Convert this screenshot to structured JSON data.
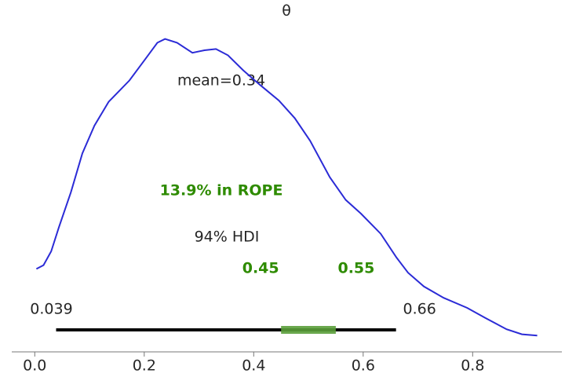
{
  "chart_data": {
    "type": "density",
    "title": "θ",
    "x": [
      0.003,
      0.016,
      0.03,
      0.044,
      0.066,
      0.087,
      0.109,
      0.135,
      0.173,
      0.202,
      0.224,
      0.238,
      0.26,
      0.288,
      0.31,
      0.331,
      0.353,
      0.381,
      0.41,
      0.446,
      0.475,
      0.503,
      0.539,
      0.568,
      0.596,
      0.632,
      0.661,
      0.682,
      0.711,
      0.747,
      0.79,
      0.823,
      0.862,
      0.89,
      0.918
    ],
    "values": [
      0.61,
      0.64,
      0.75,
      0.94,
      1.22,
      1.53,
      1.75,
      1.94,
      2.11,
      2.28,
      2.41,
      2.44,
      2.41,
      2.33,
      2.35,
      2.36,
      2.31,
      2.19,
      2.08,
      1.95,
      1.81,
      1.63,
      1.34,
      1.16,
      1.05,
      0.89,
      0.7,
      0.58,
      0.47,
      0.38,
      0.3,
      0.22,
      0.13,
      0.09,
      0.08
    ],
    "color": "#2b2bd6",
    "mean_label": "mean=0.34",
    "rope_label": "13.9% in ROPE",
    "rope": [
      0.45,
      0.55
    ],
    "rope_color": "#5a9e3a",
    "hdi_label": "94% HDI",
    "hdi": [
      0.039,
      0.66
    ],
    "xlim": [
      -0.042,
      0.963
    ],
    "ylim": [
      0,
      2.5
    ],
    "xticks": [
      {
        "value": 0,
        "label": "0.0"
      },
      0.2,
      0.4,
      0.6,
      0.8
    ]
  }
}
